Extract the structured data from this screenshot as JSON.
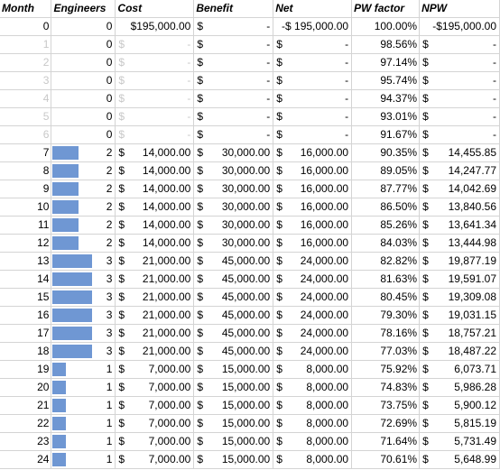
{
  "headers": [
    "Month",
    "Engineers",
    "Cost",
    "Benefit",
    "Net",
    "PW factor",
    "NPW"
  ],
  "bar_color": "#6f97d3",
  "max_engineers": 3,
  "rows": [
    {
      "month": "0",
      "engineers": "0",
      "cost": [
        "",
        "$195,000.00"
      ],
      "benefit": [
        "$",
        "-"
      ],
      "net": [
        "",
        "-$ 195,000.00"
      ],
      "pw": "100.00%",
      "npw": [
        "",
        "-$195,000.00"
      ],
      "faded": false
    },
    {
      "month": "1",
      "engineers": "0",
      "cost": [
        "$",
        "-"
      ],
      "benefit": [
        "$",
        "-"
      ],
      "net": [
        "$",
        "-"
      ],
      "pw": "98.56%",
      "npw": [
        "$",
        "-"
      ],
      "faded": true
    },
    {
      "month": "2",
      "engineers": "0",
      "cost": [
        "$",
        "-"
      ],
      "benefit": [
        "$",
        "-"
      ],
      "net": [
        "$",
        "-"
      ],
      "pw": "97.14%",
      "npw": [
        "$",
        "-"
      ],
      "faded": true
    },
    {
      "month": "3",
      "engineers": "0",
      "cost": [
        "$",
        "-"
      ],
      "benefit": [
        "$",
        "-"
      ],
      "net": [
        "$",
        "-"
      ],
      "pw": "95.74%",
      "npw": [
        "$",
        "-"
      ],
      "faded": true
    },
    {
      "month": "4",
      "engineers": "0",
      "cost": [
        "$",
        "-"
      ],
      "benefit": [
        "$",
        "-"
      ],
      "net": [
        "$",
        "-"
      ],
      "pw": "94.37%",
      "npw": [
        "$",
        "-"
      ],
      "faded": true
    },
    {
      "month": "5",
      "engineers": "0",
      "cost": [
        "$",
        "-"
      ],
      "benefit": [
        "$",
        "-"
      ],
      "net": [
        "$",
        "-"
      ],
      "pw": "93.01%",
      "npw": [
        "$",
        "-"
      ],
      "faded": true
    },
    {
      "month": "6",
      "engineers": "0",
      "cost": [
        "$",
        "-"
      ],
      "benefit": [
        "$",
        "-"
      ],
      "net": [
        "$",
        "-"
      ],
      "pw": "91.67%",
      "npw": [
        "$",
        "-"
      ],
      "faded": true
    },
    {
      "month": "7",
      "engineers": "2",
      "cost": [
        "$",
        "14,000.00"
      ],
      "benefit": [
        "$",
        "30,000.00"
      ],
      "net": [
        "$",
        "16,000.00"
      ],
      "pw": "90.35%",
      "npw": [
        "$",
        "14,455.85"
      ],
      "faded": false
    },
    {
      "month": "8",
      "engineers": "2",
      "cost": [
        "$",
        "14,000.00"
      ],
      "benefit": [
        "$",
        "30,000.00"
      ],
      "net": [
        "$",
        "16,000.00"
      ],
      "pw": "89.05%",
      "npw": [
        "$",
        "14,247.77"
      ],
      "faded": false
    },
    {
      "month": "9",
      "engineers": "2",
      "cost": [
        "$",
        "14,000.00"
      ],
      "benefit": [
        "$",
        "30,000.00"
      ],
      "net": [
        "$",
        "16,000.00"
      ],
      "pw": "87.77%",
      "npw": [
        "$",
        "14,042.69"
      ],
      "faded": false
    },
    {
      "month": "10",
      "engineers": "2",
      "cost": [
        "$",
        "14,000.00"
      ],
      "benefit": [
        "$",
        "30,000.00"
      ],
      "net": [
        "$",
        "16,000.00"
      ],
      "pw": "86.50%",
      "npw": [
        "$",
        "13,840.56"
      ],
      "faded": false
    },
    {
      "month": "11",
      "engineers": "2",
      "cost": [
        "$",
        "14,000.00"
      ],
      "benefit": [
        "$",
        "30,000.00"
      ],
      "net": [
        "$",
        "16,000.00"
      ],
      "pw": "85.26%",
      "npw": [
        "$",
        "13,641.34"
      ],
      "faded": false
    },
    {
      "month": "12",
      "engineers": "2",
      "cost": [
        "$",
        "14,000.00"
      ],
      "benefit": [
        "$",
        "30,000.00"
      ],
      "net": [
        "$",
        "16,000.00"
      ],
      "pw": "84.03%",
      "npw": [
        "$",
        "13,444.98"
      ],
      "faded": false
    },
    {
      "month": "13",
      "engineers": "3",
      "cost": [
        "$",
        "21,000.00"
      ],
      "benefit": [
        "$",
        "45,000.00"
      ],
      "net": [
        "$",
        "24,000.00"
      ],
      "pw": "82.82%",
      "npw": [
        "$",
        "19,877.19"
      ],
      "faded": false
    },
    {
      "month": "14",
      "engineers": "3",
      "cost": [
        "$",
        "21,000.00"
      ],
      "benefit": [
        "$",
        "45,000.00"
      ],
      "net": [
        "$",
        "24,000.00"
      ],
      "pw": "81.63%",
      "npw": [
        "$",
        "19,591.07"
      ],
      "faded": false
    },
    {
      "month": "15",
      "engineers": "3",
      "cost": [
        "$",
        "21,000.00"
      ],
      "benefit": [
        "$",
        "45,000.00"
      ],
      "net": [
        "$",
        "24,000.00"
      ],
      "pw": "80.45%",
      "npw": [
        "$",
        "19,309.08"
      ],
      "faded": false
    },
    {
      "month": "16",
      "engineers": "3",
      "cost": [
        "$",
        "21,000.00"
      ],
      "benefit": [
        "$",
        "45,000.00"
      ],
      "net": [
        "$",
        "24,000.00"
      ],
      "pw": "79.30%",
      "npw": [
        "$",
        "19,031.15"
      ],
      "faded": false
    },
    {
      "month": "17",
      "engineers": "3",
      "cost": [
        "$",
        "21,000.00"
      ],
      "benefit": [
        "$",
        "45,000.00"
      ],
      "net": [
        "$",
        "24,000.00"
      ],
      "pw": "78.16%",
      "npw": [
        "$",
        "18,757.21"
      ],
      "faded": false
    },
    {
      "month": "18",
      "engineers": "3",
      "cost": [
        "$",
        "21,000.00"
      ],
      "benefit": [
        "$",
        "45,000.00"
      ],
      "net": [
        "$",
        "24,000.00"
      ],
      "pw": "77.03%",
      "npw": [
        "$",
        "18,487.22"
      ],
      "faded": false
    },
    {
      "month": "19",
      "engineers": "1",
      "cost": [
        "$",
        "7,000.00"
      ],
      "benefit": [
        "$",
        "15,000.00"
      ],
      "net": [
        "$",
        "8,000.00"
      ],
      "pw": "75.92%",
      "npw": [
        "$",
        "6,073.71"
      ],
      "faded": false
    },
    {
      "month": "20",
      "engineers": "1",
      "cost": [
        "$",
        "7,000.00"
      ],
      "benefit": [
        "$",
        "15,000.00"
      ],
      "net": [
        "$",
        "8,000.00"
      ],
      "pw": "74.83%",
      "npw": [
        "$",
        "5,986.28"
      ],
      "faded": false
    },
    {
      "month": "21",
      "engineers": "1",
      "cost": [
        "$",
        "7,000.00"
      ],
      "benefit": [
        "$",
        "15,000.00"
      ],
      "net": [
        "$",
        "8,000.00"
      ],
      "pw": "73.75%",
      "npw": [
        "$",
        "5,900.12"
      ],
      "faded": false
    },
    {
      "month": "22",
      "engineers": "1",
      "cost": [
        "$",
        "7,000.00"
      ],
      "benefit": [
        "$",
        "15,000.00"
      ],
      "net": [
        "$",
        "8,000.00"
      ],
      "pw": "72.69%",
      "npw": [
        "$",
        "5,815.19"
      ],
      "faded": false
    },
    {
      "month": "23",
      "engineers": "1",
      "cost": [
        "$",
        "7,000.00"
      ],
      "benefit": [
        "$",
        "15,000.00"
      ],
      "net": [
        "$",
        "8,000.00"
      ],
      "pw": "71.64%",
      "npw": [
        "$",
        "5,731.49"
      ],
      "faded": false
    },
    {
      "month": "24",
      "engineers": "1",
      "cost": [
        "$",
        "7,000.00"
      ],
      "benefit": [
        "$",
        "15,000.00"
      ],
      "net": [
        "$",
        "8,000.00"
      ],
      "pw": "70.61%",
      "npw": [
        "$",
        "5,648.99"
      ],
      "faded": false
    }
  ]
}
